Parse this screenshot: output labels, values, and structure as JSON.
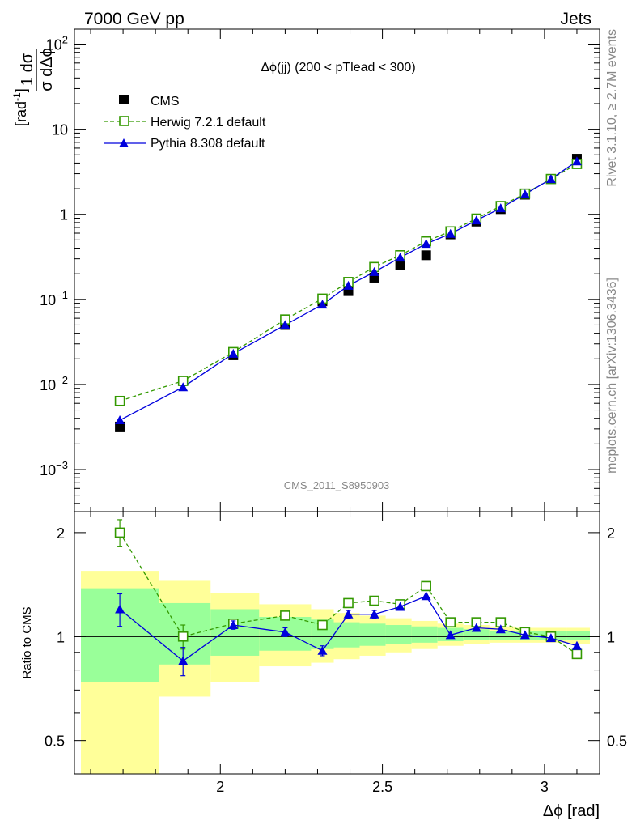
{
  "header": {
    "left": "7000 GeV pp",
    "right": "Jets"
  },
  "side": {
    "rivet": "Rivet 3.1.10, ≥ 2.7M events",
    "ref": "mcplots.cern.ch [arXiv:1306.3436]"
  },
  "chart_data": {
    "type": "line",
    "title": "Δϕ(jj) (200 < pTlead <  300)",
    "watermark": "CMS_2011_S8950903",
    "ylabel_main": "1/σ dσ/dΔϕ [rad⁻¹]",
    "ylabel_ratio": "Ratio to CMS",
    "xlabel": "Δϕ [rad]",
    "xlim": [
      1.55,
      3.17
    ],
    "ylim": [
      0.00032,
      150
    ],
    "ratio_ylim": [
      0.4,
      2.3
    ],
    "y_scale": "log",
    "ratio_y_scale": "log",
    "x_ticks": [
      {
        "v": 2,
        "label": "2"
      },
      {
        "v": 2.5,
        "label": "2.5"
      },
      {
        "v": 3,
        "label": "3"
      }
    ],
    "y_ticks": [
      {
        "v": 0.001,
        "base": "10",
        "exp": "−3"
      },
      {
        "v": 0.01,
        "base": "10",
        "exp": "−2"
      },
      {
        "v": 0.1,
        "base": "10",
        "exp": "−1"
      },
      {
        "v": 1,
        "base": "1",
        "exp": ""
      },
      {
        "v": 10,
        "base": "10",
        "exp": ""
      },
      {
        "v": 100,
        "base": "10",
        "exp": "2"
      }
    ],
    "ratio_ticks": [
      {
        "v": 0.5,
        "label": "0.5"
      },
      {
        "v": 1,
        "label": "1"
      },
      {
        "v": 2,
        "label": "2"
      }
    ],
    "legend_position": "top-left",
    "cms": {
      "name": "CMS",
      "x": [
        1.69,
        1.885,
        2.04,
        2.2,
        2.315,
        2.395,
        2.475,
        2.555,
        2.635,
        2.71,
        2.79,
        2.865,
        2.94,
        3.02,
        3.1
      ],
      "y": [
        0.0032,
        0.011,
        0.022,
        0.05,
        0.095,
        0.125,
        0.18,
        0.25,
        0.33,
        0.58,
        0.82,
        1.15,
        1.7,
        2.6,
        4.5
      ],
      "bands": [
        {
          "x0": 1.57,
          "x1": 1.81,
          "y_lo": 0.4,
          "y_hi": 1.55,
          "g_lo": 0.74,
          "g_hi": 1.38
        },
        {
          "x0": 1.81,
          "x1": 1.97,
          "y_lo": 0.67,
          "y_hi": 1.45,
          "g_lo": 0.83,
          "g_hi": 1.25
        },
        {
          "x0": 1.97,
          "x1": 2.12,
          "y_lo": 0.74,
          "y_hi": 1.34,
          "g_lo": 0.88,
          "g_hi": 1.2
        },
        {
          "x0": 2.12,
          "x1": 2.28,
          "y_lo": 0.82,
          "y_hi": 1.24,
          "g_lo": 0.91,
          "g_hi": 1.14
        },
        {
          "x0": 2.28,
          "x1": 2.35,
          "y_lo": 0.84,
          "y_hi": 1.2,
          "g_lo": 0.92,
          "g_hi": 1.12
        },
        {
          "x0": 2.35,
          "x1": 2.43,
          "y_lo": 0.86,
          "y_hi": 1.17,
          "g_lo": 0.93,
          "g_hi": 1.1
        },
        {
          "x0": 2.43,
          "x1": 2.51,
          "y_lo": 0.88,
          "y_hi": 1.15,
          "g_lo": 0.94,
          "g_hi": 1.09
        },
        {
          "x0": 2.51,
          "x1": 2.59,
          "y_lo": 0.9,
          "y_hi": 1.13,
          "g_lo": 0.95,
          "g_hi": 1.08
        },
        {
          "x0": 2.59,
          "x1": 2.67,
          "y_lo": 0.92,
          "y_hi": 1.11,
          "g_lo": 0.96,
          "g_hi": 1.07
        },
        {
          "x0": 2.67,
          "x1": 2.75,
          "y_lo": 0.94,
          "y_hi": 1.09,
          "g_lo": 0.97,
          "g_hi": 1.06
        },
        {
          "x0": 2.75,
          "x1": 2.83,
          "y_lo": 0.95,
          "y_hi": 1.08,
          "g_lo": 0.975,
          "g_hi": 1.05
        },
        {
          "x0": 2.83,
          "x1": 2.91,
          "y_lo": 0.96,
          "y_hi": 1.07,
          "g_lo": 0.98,
          "g_hi": 1.04
        },
        {
          "x0": 2.91,
          "x1": 2.99,
          "y_lo": 0.96,
          "y_hi": 1.06,
          "g_lo": 0.98,
          "g_hi": 1.04
        },
        {
          "x0": 2.99,
          "x1": 3.07,
          "y_lo": 0.96,
          "y_hi": 1.06,
          "g_lo": 0.98,
          "g_hi": 1.035
        },
        {
          "x0": 3.07,
          "x1": 3.14,
          "y_lo": 0.95,
          "y_hi": 1.06,
          "g_lo": 0.975,
          "g_hi": 1.04
        }
      ]
    },
    "series": [
      {
        "name": "Herwig 7.2.1 default",
        "color": "#339900",
        "marker": "open-square",
        "dashed": true,
        "x": [
          1.69,
          1.885,
          2.04,
          2.2,
          2.315,
          2.395,
          2.475,
          2.555,
          2.635,
          2.71,
          2.79,
          2.865,
          2.94,
          3.02,
          3.1
        ],
        "y": [
          0.0064,
          0.011,
          0.024,
          0.058,
          0.102,
          0.16,
          0.24,
          0.33,
          0.48,
          0.63,
          0.89,
          1.25,
          1.75,
          2.6,
          3.9
        ],
        "ratio": [
          2.0,
          1.0,
          1.09,
          1.15,
          1.08,
          1.25,
          1.27,
          1.24,
          1.4,
          1.1,
          1.1,
          1.1,
          1.03,
          1.0,
          0.89
        ],
        "ratio_err": [
          0.18,
          0.08,
          0.03,
          0.03,
          0.03,
          0.03,
          0.03,
          0.02,
          0.02,
          0.02,
          0.02,
          0.015,
          0.01,
          0.01,
          0.01
        ]
      },
      {
        "name": "Pythia 8.308 default",
        "color": "#0000dd",
        "marker": "triangle",
        "dashed": false,
        "x": [
          1.69,
          1.885,
          2.04,
          2.2,
          2.315,
          2.395,
          2.475,
          2.555,
          2.635,
          2.71,
          2.79,
          2.865,
          2.94,
          3.02,
          3.1
        ],
        "y": [
          0.0038,
          0.0093,
          0.023,
          0.05,
          0.087,
          0.145,
          0.21,
          0.31,
          0.45,
          0.59,
          0.85,
          1.18,
          1.72,
          2.6,
          4.2
        ],
        "ratio": [
          1.2,
          0.85,
          1.08,
          1.03,
          0.91,
          1.16,
          1.16,
          1.22,
          1.31,
          1.01,
          1.06,
          1.05,
          1.01,
          0.99,
          0.94
        ],
        "ratio_err": [
          0.13,
          0.08,
          0.03,
          0.03,
          0.03,
          0.03,
          0.03,
          0.02,
          0.02,
          0.02,
          0.02,
          0.015,
          0.01,
          0.01,
          0.01
        ]
      }
    ]
  }
}
